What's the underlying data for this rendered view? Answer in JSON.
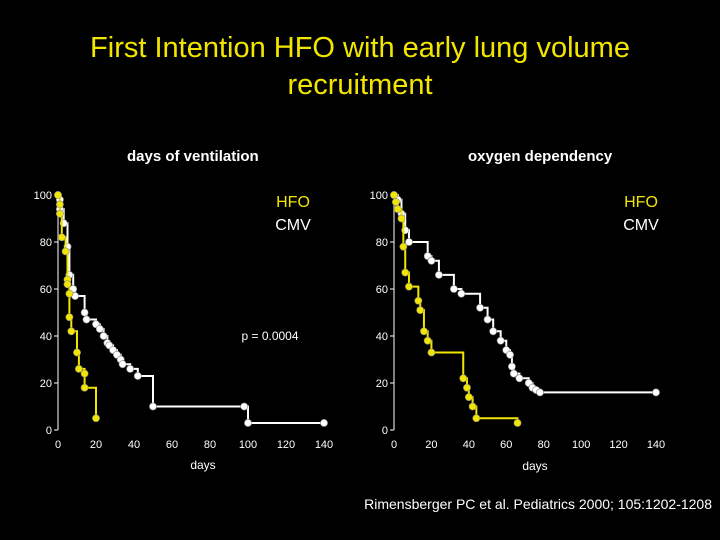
{
  "title": "First Intention HFO with early lung volume recruitment",
  "citation": "Rimensberger PC et al.   Pediatrics 2000; 105:1202-1208",
  "colors": {
    "hfo": "#f2e600",
    "cmv": "#ffffff",
    "background": "#000000"
  },
  "chart_data": [
    {
      "type": "line",
      "step": true,
      "title": "days of ventilation",
      "xlabel": "days",
      "ylabel": "",
      "xlim": [
        0,
        140
      ],
      "ylim": [
        0,
        100
      ],
      "xticks": [
        0,
        20,
        40,
        60,
        80,
        100,
        120,
        140
      ],
      "yticks": [
        0,
        20,
        40,
        60,
        80,
        100
      ],
      "annotation": "p = 0.0004",
      "legend": {
        "items": [
          "HFO",
          "CMV"
        ],
        "placement": "top-right"
      },
      "series": [
        {
          "name": "HFO",
          "color": "#f2e600",
          "x": [
            0,
            1,
            1,
            2,
            4,
            5,
            5,
            6,
            6,
            7,
            10,
            11,
            14,
            14,
            20
          ],
          "y": [
            100,
            96,
            92,
            82,
            76,
            64,
            62,
            58,
            48,
            42,
            33,
            26,
            24,
            18,
            5
          ]
        },
        {
          "name": "CMV",
          "color": "#ffffff",
          "x": [
            0,
            1,
            1,
            3,
            5,
            6,
            8,
            9,
            14,
            15,
            20,
            22,
            24,
            26,
            27,
            29,
            31,
            33,
            34,
            38,
            42,
            50,
            98,
            100,
            140
          ],
          "y": [
            100,
            98,
            94,
            88,
            78,
            66,
            60,
            57,
            50,
            47,
            45,
            43,
            40,
            37,
            36,
            34,
            32,
            30,
            28,
            26,
            23,
            10,
            10,
            3,
            3
          ]
        }
      ]
    },
    {
      "type": "line",
      "step": true,
      "title": "oxygen dependency",
      "xlabel": "days",
      "ylabel": "",
      "xlim": [
        0,
        140
      ],
      "ylim": [
        0,
        100
      ],
      "xticks": [
        0,
        20,
        40,
        60,
        80,
        100,
        120,
        140
      ],
      "yticks": [
        0,
        20,
        40,
        60,
        80,
        100
      ],
      "legend": {
        "items": [
          "HFO",
          "CMV"
        ],
        "placement": "top-right"
      },
      "series": [
        {
          "name": "HFO",
          "color": "#f2e600",
          "x": [
            0,
            1,
            2,
            4,
            5,
            6,
            8,
            13,
            14,
            16,
            18,
            20,
            37,
            39,
            40,
            42,
            44,
            66
          ],
          "y": [
            100,
            97,
            94,
            90,
            78,
            67,
            61,
            55,
            51,
            42,
            38,
            33,
            22,
            18,
            14,
            10,
            5,
            3
          ]
        },
        {
          "name": "CMV",
          "color": "#ffffff",
          "x": [
            0,
            2,
            4,
            6,
            8,
            18,
            20,
            24,
            32,
            36,
            46,
            50,
            53,
            57,
            60,
            62,
            63,
            64,
            67,
            72,
            74,
            76,
            78,
            140
          ],
          "y": [
            100,
            98,
            92,
            85,
            80,
            74,
            72,
            66,
            60,
            58,
            52,
            47,
            42,
            38,
            34,
            32,
            27,
            24,
            22,
            20,
            18,
            17,
            16,
            16
          ]
        }
      ]
    }
  ]
}
